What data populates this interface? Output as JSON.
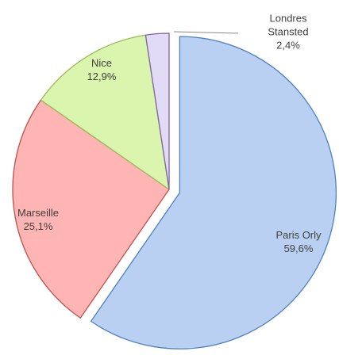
{
  "chart_data": {
    "type": "pie",
    "categories": [
      "Paris Orly",
      "Marseille",
      "Nice",
      "Londres Stansted"
    ],
    "values": [
      59.6,
      25.1,
      12.9,
      2.4
    ],
    "value_labels": [
      "59,6%",
      "25,1%",
      "12,9%",
      "2,4%"
    ],
    "colors": [
      "#b9d0f2",
      "#ffb5b3",
      "#daf5ad",
      "#e2dbf5"
    ],
    "edge_colors": [
      "#4f81bd",
      "#c0504d",
      "#9bbb59",
      "#8064a2"
    ],
    "exploded": [
      true,
      false,
      false,
      false
    ]
  }
}
